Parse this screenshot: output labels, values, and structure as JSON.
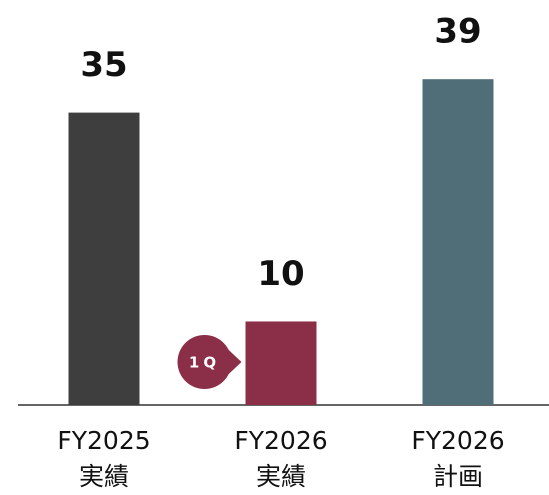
{
  "chart_data": {
    "type": "bar",
    "categories": [
      [
        "FY2025",
        "実績"
      ],
      [
        "FY2026",
        "実績"
      ],
      [
        "FY2026",
        "計画"
      ]
    ],
    "values": [
      35,
      10,
      39
    ],
    "colors": [
      "#3e3e3e",
      "#8b2f48",
      "#4f6e78"
    ],
    "ylim": [
      0,
      48
    ],
    "annotation": {
      "text": "1Q",
      "category": 1,
      "color": "#8b2f48"
    }
  }
}
